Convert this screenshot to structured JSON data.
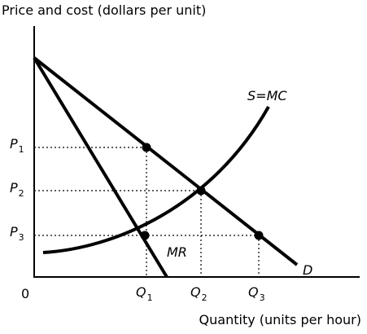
{
  "diagram": {
    "y_axis_title": "Price and cost (dollars per unit)",
    "x_axis_title": "Quantity (units per hour)",
    "origin_label": "0",
    "curves": {
      "demand": "D",
      "marginal_revenue": "MR",
      "supply": "S=MC"
    },
    "price_labels": [
      {
        "main": "P",
        "sub": "1"
      },
      {
        "main": "P",
        "sub": "2"
      },
      {
        "main": "P",
        "sub": "3"
      }
    ],
    "quantity_labels": [
      {
        "main": "Q",
        "sub": "1"
      },
      {
        "main": "Q",
        "sub": "2"
      },
      {
        "main": "Q",
        "sub": "3"
      }
    ]
  }
}
